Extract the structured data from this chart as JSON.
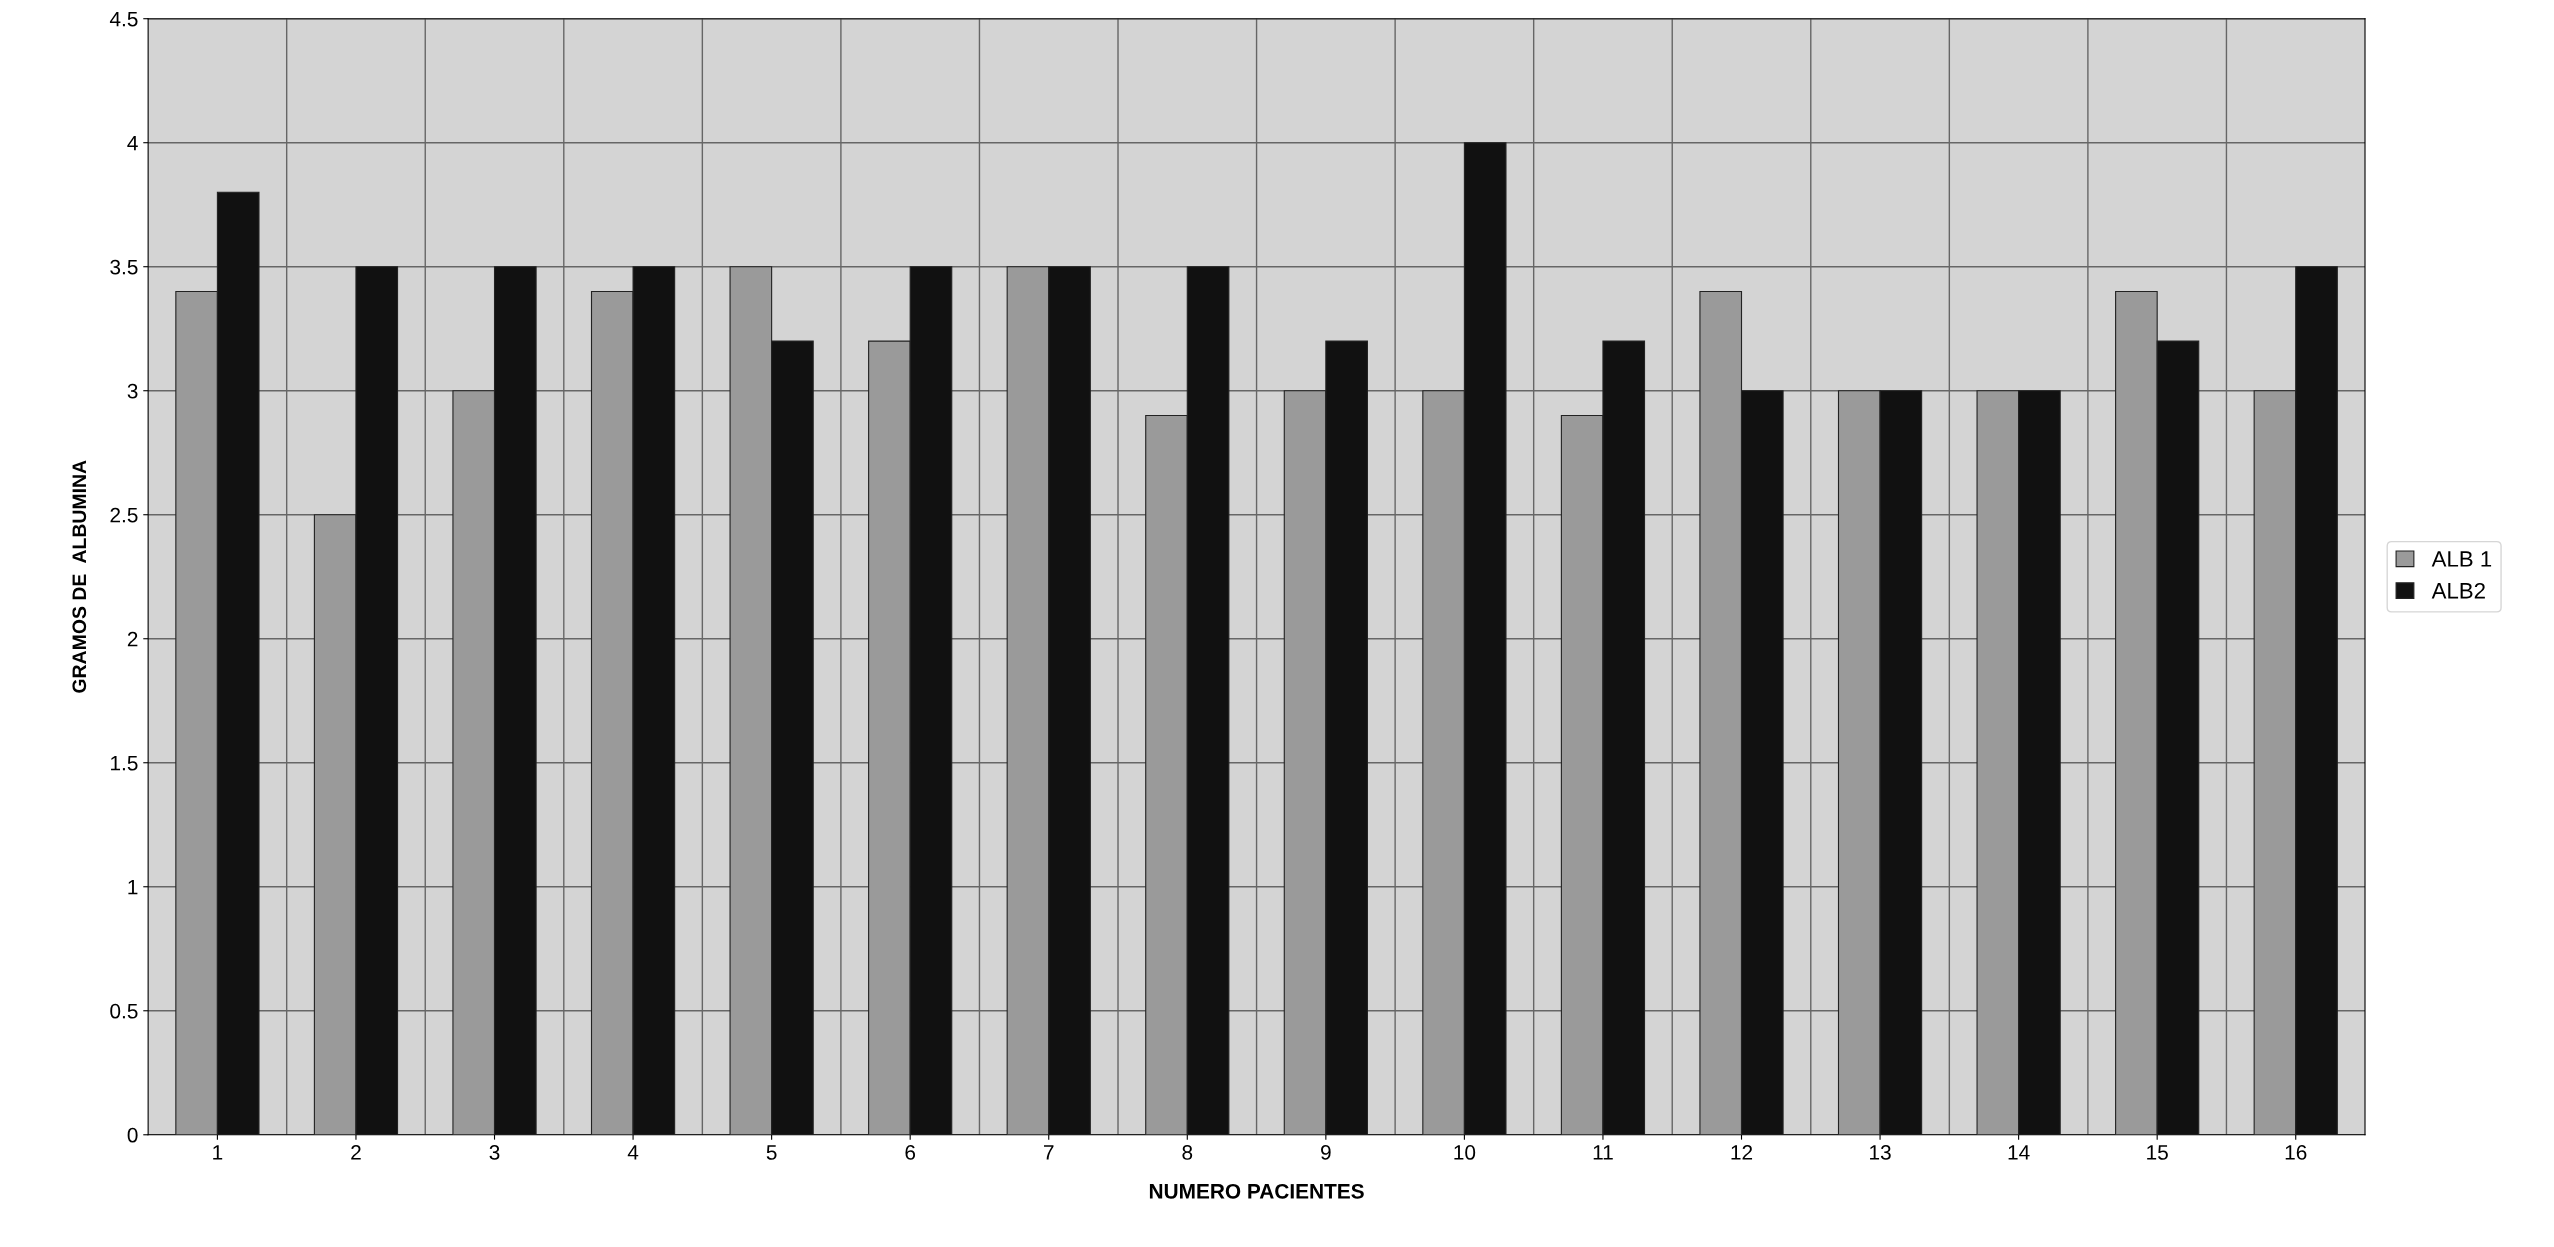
{
  "chart_data": {
    "type": "bar",
    "xlabel": "NUMERO PACIENTES",
    "ylabel": "GRAMOS DE  ALBUMINA",
    "categories": [
      "1",
      "2",
      "3",
      "4",
      "5",
      "6",
      "7",
      "8",
      "9",
      "10",
      "11",
      "12",
      "13",
      "14",
      "15",
      "16"
    ],
    "series": [
      {
        "name": "ALB 1",
        "color": "#9a9a9a",
        "values": [
          3.4,
          2.5,
          3.0,
          3.4,
          3.5,
          3.2,
          3.5,
          2.9,
          3.0,
          3.0,
          2.9,
          3.4,
          3.0,
          3.0,
          3.4,
          3.0
        ]
      },
      {
        "name": "ALB2",
        "color": "#111111",
        "values": [
          3.8,
          3.5,
          3.5,
          3.5,
          3.2,
          3.5,
          3.5,
          3.5,
          3.2,
          4.0,
          3.2,
          3.0,
          3.0,
          3.0,
          3.2,
          3.5
        ]
      }
    ],
    "ylim": [
      0,
      4.5
    ],
    "yticks": [
      0,
      0.5,
      1,
      1.5,
      2,
      2.5,
      3,
      3.5,
      4,
      4.5
    ],
    "grid": true,
    "legend": "right"
  }
}
